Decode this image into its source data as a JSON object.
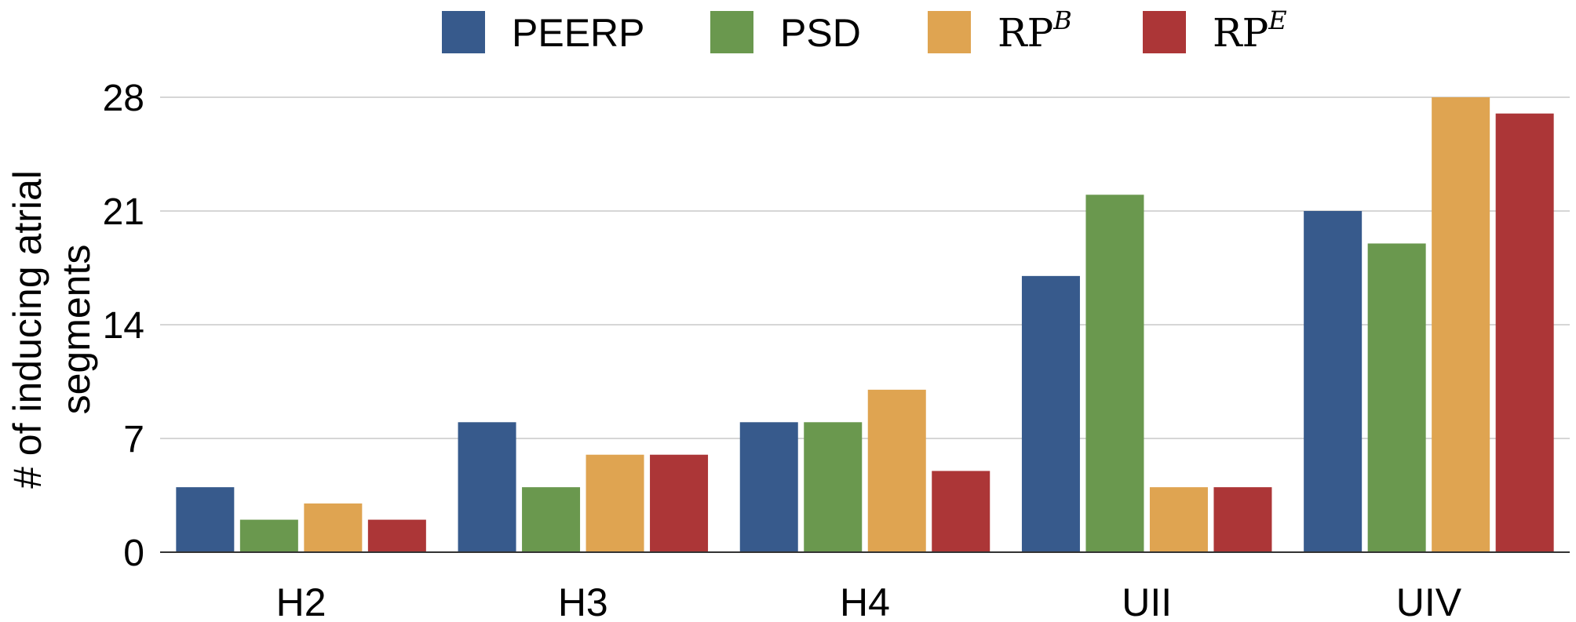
{
  "chart_data": {
    "type": "bar",
    "categories": [
      "H2",
      "H3",
      "H4",
      "UII",
      "UIV"
    ],
    "series": [
      {
        "name": "PEERP",
        "name_base": "PEERP",
        "name_sup": "",
        "color": "#375a8c",
        "values": [
          4,
          8,
          8,
          17,
          21
        ]
      },
      {
        "name": "PSD",
        "name_base": "PSD",
        "name_sup": "",
        "color": "#6a984e",
        "values": [
          2,
          4,
          8,
          22,
          19
        ]
      },
      {
        "name": "RP^B",
        "name_base": "RP",
        "name_sup": "B",
        "color": "#dfa451",
        "values": [
          3,
          6,
          10,
          4,
          28
        ]
      },
      {
        "name": "RP^E",
        "name_base": "RP",
        "name_sup": "E",
        "color": "#ac3637",
        "values": [
          2,
          6,
          5,
          4,
          27
        ]
      }
    ],
    "ylabel_lines": [
      "# of inducing atrial",
      "segments"
    ],
    "ylim": [
      0,
      28
    ],
    "yticks": [
      "0",
      "7",
      "14",
      "21",
      "28"
    ],
    "grid": true,
    "legend_position": "top"
  }
}
